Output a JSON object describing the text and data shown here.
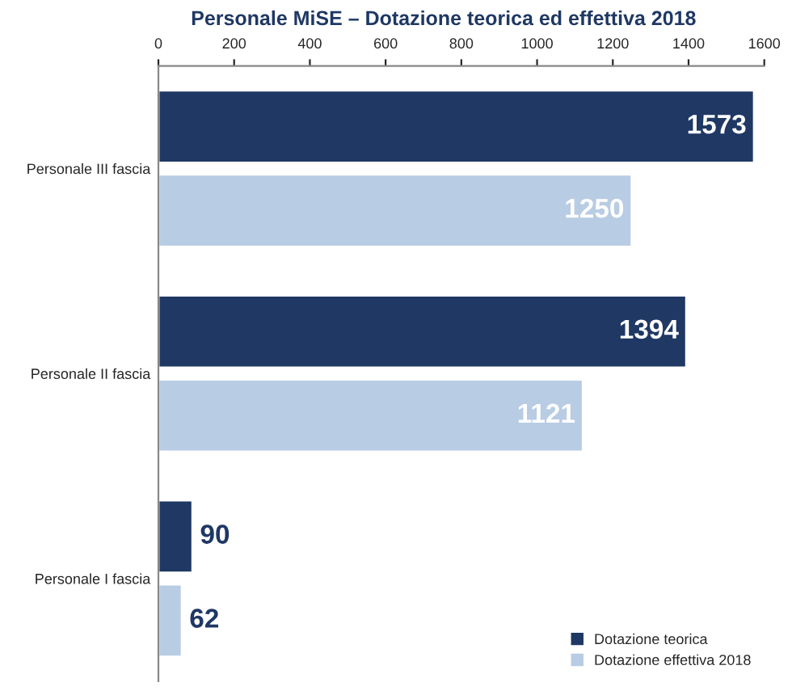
{
  "chart_data": {
    "type": "bar",
    "orientation": "horizontal",
    "title": "Personale MiSE – Dotazione teorica ed effettiva 2018",
    "categories": [
      "Personale III fascia",
      "Personale II fascia",
      "Personale I fascia"
    ],
    "series": [
      {
        "name": "Dotazione teorica",
        "color": "#1f3864",
        "values": [
          1573,
          1394,
          90
        ]
      },
      {
        "name": "Dotazione effettiva 2018",
        "color": "#b8cce4",
        "values": [
          1250,
          1121,
          62
        ]
      }
    ],
    "xlim": [
      0,
      1600
    ],
    "xticks": [
      0,
      200,
      400,
      600,
      800,
      1000,
      1200,
      1400,
      1600
    ],
    "data_labels": true,
    "grid": false,
    "legend": "bottom right"
  }
}
